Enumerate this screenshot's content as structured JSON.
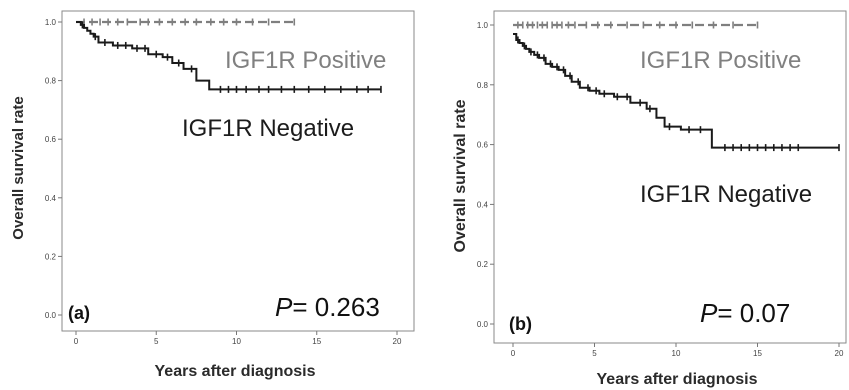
{
  "chart_data": [
    {
      "type": "line",
      "panel_label": "(a)",
      "p_label": "P",
      "p_value": "= 0.263",
      "xlabel": "Years after diagnosis",
      "ylabel": "Overall survival rate",
      "xlim": [
        0,
        20
      ],
      "ylim": [
        0,
        1
      ],
      "xticks": [
        "0",
        "5",
        "10",
        "15",
        "20"
      ],
      "yticks": [
        "0.0",
        "0.2",
        "0.4",
        "0.6",
        "0.8",
        "1.0"
      ],
      "series": [
        {
          "name": "IGF1R Positive",
          "color": "#7f7f7f",
          "dash": true,
          "x": [
            0,
            13.6
          ],
          "y": [
            1.0,
            1.0
          ],
          "censored": [
            0.5,
            1.0,
            1.5,
            2.0,
            2.6,
            3.2,
            4.0,
            4.5,
            5.2,
            6.0,
            6.8,
            7.5,
            8.4,
            9.2,
            10.0,
            11.0,
            12.0,
            13.6
          ]
        },
        {
          "name": "IGF1R Negative",
          "color": "#1a1a1a",
          "dash": false,
          "x": [
            0,
            0.3,
            0.5,
            0.7,
            0.9,
            1.1,
            1.4,
            2.3,
            3.5,
            4.5,
            5.4,
            6.0,
            6.7,
            7.5,
            8.3,
            19.0
          ],
          "y": [
            1.0,
            0.99,
            0.98,
            0.97,
            0.96,
            0.95,
            0.93,
            0.92,
            0.91,
            0.89,
            0.88,
            0.86,
            0.84,
            0.8,
            0.77,
            0.77
          ],
          "censored": [
            0.4,
            1.2,
            1.8,
            2.6,
            3.1,
            3.8,
            4.3,
            5.0,
            5.7,
            6.4,
            7.2,
            9.0,
            9.5,
            10.0,
            10.6,
            11.4,
            12.0,
            12.8,
            13.6,
            14.5,
            15.5,
            16.5,
            17.5,
            18.2,
            19.0
          ]
        }
      ]
    },
    {
      "type": "line",
      "panel_label": "(b)",
      "p_label": "P",
      "p_value": "= 0.07",
      "xlabel": "Years after diagnosis",
      "ylabel": "Overall survival rate",
      "xlim": [
        0,
        20
      ],
      "ylim": [
        0,
        1
      ],
      "xticks": [
        "0",
        "5",
        "10",
        "15",
        "20"
      ],
      "yticks": [
        "0.0",
        "0.2",
        "0.4",
        "0.6",
        "0.8",
        "1.0"
      ],
      "series": [
        {
          "name": "IGF1R Positive",
          "color": "#7f7f7f",
          "dash": true,
          "x": [
            0,
            15.0
          ],
          "y": [
            1.0,
            1.0
          ],
          "censored": [
            0.3,
            0.6,
            0.9,
            1.2,
            1.5,
            1.8,
            2.1,
            2.4,
            2.7,
            3.0,
            3.4,
            3.8,
            4.5,
            5.2,
            6.0,
            7.0,
            8.0,
            9.0,
            10.0,
            11.0,
            12.3,
            13.5,
            15.0
          ]
        },
        {
          "name": "IGF1R Negative",
          "color": "#1a1a1a",
          "dash": false,
          "x": [
            0,
            0.2,
            0.4,
            0.6,
            0.8,
            1.0,
            1.3,
            1.6,
            2.0,
            2.4,
            2.8,
            3.2,
            3.6,
            4.1,
            4.7,
            5.3,
            6.2,
            7.2,
            8.2,
            8.8,
            9.3,
            10.3,
            12.2,
            20.0
          ],
          "y": [
            0.97,
            0.95,
            0.94,
            0.93,
            0.92,
            0.91,
            0.9,
            0.89,
            0.87,
            0.86,
            0.85,
            0.83,
            0.81,
            0.79,
            0.78,
            0.77,
            0.76,
            0.74,
            0.72,
            0.69,
            0.66,
            0.65,
            0.59,
            0.59
          ],
          "censored": [
            0.3,
            0.7,
            1.1,
            1.5,
            1.9,
            2.3,
            2.7,
            3.1,
            3.5,
            4.0,
            4.6,
            5.1,
            5.6,
            6.4,
            7.0,
            7.8,
            8.4,
            9.6,
            10.8,
            11.5,
            13.0,
            13.5,
            14.0,
            14.5,
            15.0,
            15.5,
            16.0,
            16.5,
            17.0,
            17.5,
            20.0
          ]
        }
      ]
    }
  ]
}
